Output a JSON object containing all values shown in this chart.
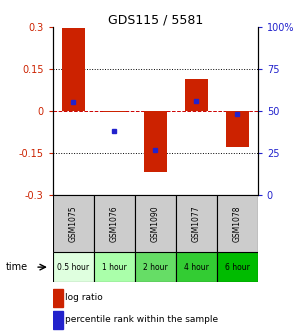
{
  "title": "GDS115 / 5581",
  "samples": [
    "GSM1075",
    "GSM1076",
    "GSM1090",
    "GSM1077",
    "GSM1078"
  ],
  "time_labels": [
    "0.5 hour",
    "1 hour",
    "2 hour",
    "4 hour",
    "6 hour"
  ],
  "time_colors": [
    "#dfffdf",
    "#aaffaa",
    "#66dd66",
    "#33cc33",
    "#00bb00"
  ],
  "log_ratios": [
    0.295,
    -0.005,
    -0.22,
    0.115,
    -0.13
  ],
  "percentile_ranks": [
    0.555,
    0.38,
    0.27,
    0.56,
    0.48
  ],
  "bar_color": "#cc2200",
  "dot_color": "#2222cc",
  "ylim": [
    -0.3,
    0.3
  ],
  "yticks_left": [
    -0.3,
    -0.15,
    0,
    0.15,
    0.3
  ],
  "yticks_right_vals": [
    0,
    25,
    50,
    75,
    100
  ],
  "left_color": "#cc2200",
  "right_color": "#2222cc",
  "zero_line_color": "#cc0000",
  "grid_color": "#000000",
  "bar_width": 0.55,
  "sample_bg": "#cccccc",
  "legend_bar_color": "#cc2200",
  "legend_dot_color": "#2222cc"
}
